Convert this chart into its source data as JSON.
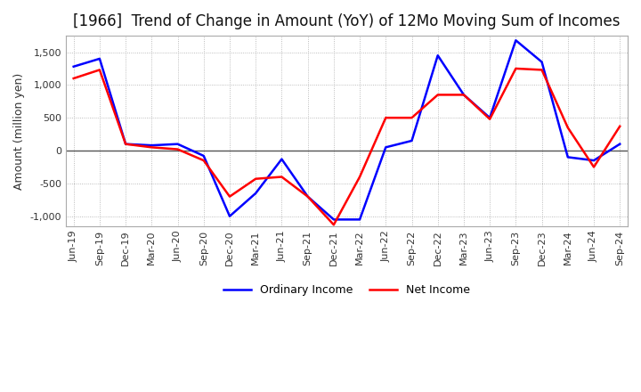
{
  "title": "[1966]  Trend of Change in Amount (YoY) of 12Mo Moving Sum of Incomes",
  "ylabel": "Amount (million yen)",
  "x_labels": [
    "Jun-19",
    "Sep-19",
    "Dec-19",
    "Mar-20",
    "Jun-20",
    "Sep-20",
    "Dec-20",
    "Mar-21",
    "Jun-21",
    "Sep-21",
    "Dec-21",
    "Mar-22",
    "Jun-22",
    "Sep-22",
    "Dec-22",
    "Mar-23",
    "Jun-23",
    "Sep-23",
    "Dec-23",
    "Mar-24",
    "Jun-24",
    "Sep-24"
  ],
  "ordinary_income": [
    1280,
    1400,
    100,
    80,
    100,
    -80,
    -1000,
    -650,
    -130,
    -700,
    -1050,
    -1050,
    50,
    150,
    1450,
    850,
    500,
    1680,
    1350,
    -100,
    -150,
    100
  ],
  "net_income": [
    1100,
    1230,
    100,
    50,
    20,
    -150,
    -700,
    -430,
    -400,
    -700,
    -1130,
    -400,
    500,
    500,
    850,
    850,
    480,
    1250,
    1230,
    350,
    -250,
    370
  ],
  "ordinary_income_color": "#0000ff",
  "net_income_color": "#ff0000",
  "background_color": "#ffffff",
  "grid_color": "#aaaaaa",
  "ylim": [
    -1150,
    1750
  ],
  "yticks": [
    -1000,
    -500,
    0,
    500,
    1000,
    1500
  ],
  "title_fontsize": 12,
  "axis_fontsize": 9,
  "tick_fontsize": 8,
  "legend_fontsize": 9
}
